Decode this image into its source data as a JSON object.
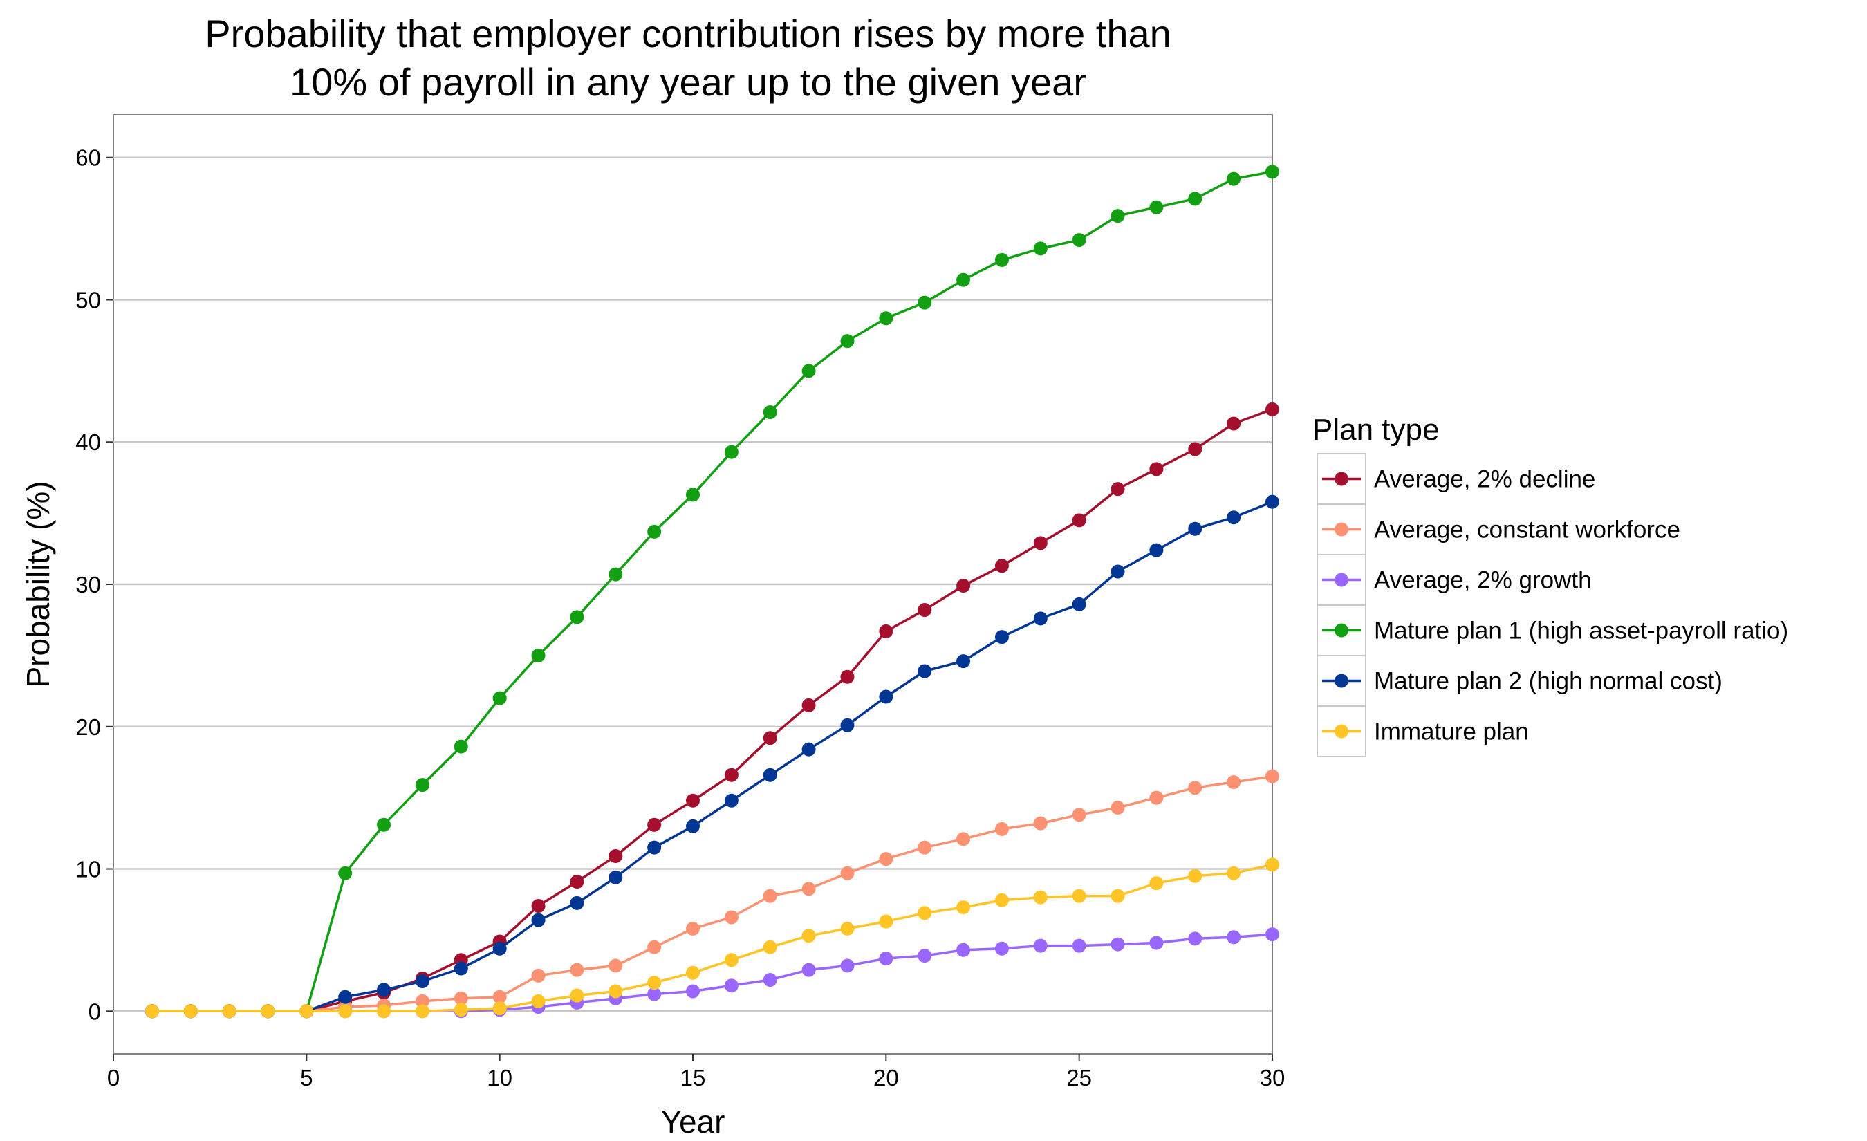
{
  "chart_data": {
    "type": "line",
    "title_lines": [
      "Probability that employer contribution rises by more than",
      "10% of payroll in any year up to the given year"
    ],
    "xlabel": "Year",
    "ylabel": "Probability (%)",
    "xlim": [
      0,
      30
    ],
    "ylim": [
      -3,
      63
    ],
    "x_ticks": [
      0,
      5,
      10,
      15,
      20,
      25,
      30
    ],
    "y_ticks": [
      0,
      10,
      20,
      30,
      40,
      50,
      60
    ],
    "grid": "horizontal major",
    "legend_title": "Plan type",
    "legend_position": "right",
    "x": [
      1,
      2,
      3,
      4,
      5,
      6,
      7,
      8,
      9,
      10,
      11,
      12,
      13,
      14,
      15,
      16,
      17,
      18,
      19,
      20,
      21,
      22,
      23,
      24,
      25,
      26,
      27,
      28,
      29,
      30
    ],
    "series": [
      {
        "name": "Average, 2% decline",
        "color": "#A50F2D",
        "values": [
          0,
          0,
          0,
          0,
          0,
          0.7,
          1.3,
          2.3,
          3.6,
          4.9,
          7.4,
          9.1,
          10.9,
          13.1,
          14.8,
          16.6,
          19.2,
          21.5,
          23.5,
          26.7,
          28.2,
          29.9,
          31.3,
          32.9,
          34.5,
          36.7,
          38.1,
          39.5,
          41.3,
          42.3
        ]
      },
      {
        "name": "Average, constant workforce",
        "color": "#FC9272",
        "values": [
          0,
          0,
          0,
          0,
          0,
          0.3,
          0.4,
          0.7,
          0.9,
          1.0,
          2.5,
          2.9,
          3.2,
          4.5,
          5.8,
          6.6,
          8.1,
          8.6,
          9.7,
          10.7,
          11.5,
          12.1,
          12.8,
          13.2,
          13.8,
          14.3,
          15.0,
          15.7,
          16.1,
          16.5
        ]
      },
      {
        "name": "Average, 2% growth",
        "color": "#9966FF",
        "values": [
          0,
          0,
          0,
          0,
          0,
          0,
          0,
          0,
          0,
          0.1,
          0.3,
          0.6,
          0.9,
          1.2,
          1.4,
          1.8,
          2.2,
          2.9,
          3.2,
          3.7,
          3.9,
          4.3,
          4.4,
          4.6,
          4.6,
          4.7,
          4.8,
          5.1,
          5.2,
          5.4
        ]
      },
      {
        "name": "Mature plan 1 (high asset-payroll ratio)",
        "color": "#12A012",
        "values": [
          0,
          0,
          0,
          0,
          0,
          9.7,
          13.1,
          15.9,
          18.6,
          22.0,
          25.0,
          27.7,
          30.7,
          33.7,
          36.3,
          39.3,
          42.1,
          45.0,
          47.1,
          48.7,
          49.8,
          51.4,
          52.8,
          53.6,
          54.2,
          55.9,
          56.5,
          57.1,
          58.5,
          59.0
        ]
      },
      {
        "name": "Mature plan 2 (high normal cost)",
        "color": "#023694",
        "values": [
          0,
          0,
          0,
          0,
          0,
          1.0,
          1.5,
          2.1,
          3.0,
          4.4,
          6.4,
          7.6,
          9.4,
          11.5,
          13.0,
          14.8,
          16.6,
          18.4,
          20.1,
          22.1,
          23.9,
          24.6,
          26.3,
          27.6,
          28.6,
          30.9,
          32.4,
          33.9,
          34.7,
          35.8
        ]
      },
      {
        "name": "Immature plan",
        "color": "#FFC425",
        "values": [
          0,
          0,
          0,
          0,
          0,
          0,
          0,
          0,
          0.1,
          0.2,
          0.7,
          1.1,
          1.4,
          2.0,
          2.7,
          3.6,
          4.5,
          5.3,
          5.8,
          6.3,
          6.9,
          7.3,
          7.8,
          8.0,
          8.1,
          8.1,
          9.0,
          9.5,
          9.7,
          10.3
        ]
      }
    ]
  }
}
